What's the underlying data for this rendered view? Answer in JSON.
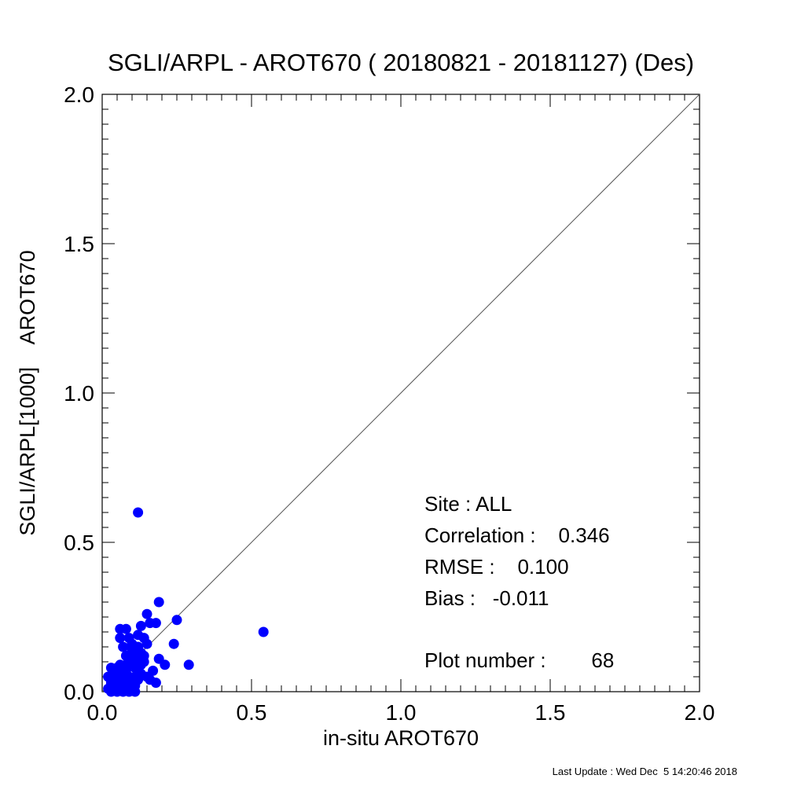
{
  "chart_data": {
    "type": "scatter",
    "title": "SGLI/ARPL - AROT670 ( 20180821 - 20181127) (Des)",
    "xlabel": "in-situ AROT670",
    "ylabel": "SGLI/ARPL[1000]    AROT670",
    "xlim": [
      0.0,
      2.0
    ],
    "ylim": [
      0.0,
      2.0
    ],
    "x_ticks": [
      "0.0",
      "0.5",
      "1.0",
      "1.5",
      "2.0"
    ],
    "y_ticks": [
      "0.0",
      "0.5",
      "1.0",
      "1.5",
      "2.0"
    ],
    "grid": false,
    "reference_line": {
      "from": [
        0.0,
        0.0
      ],
      "to": [
        2.0,
        2.0
      ]
    },
    "marker_color": "#0000ff",
    "stats": {
      "site": "Site : ALL",
      "correlation": "Correlation :    0.346",
      "rmse": "RMSE :    0.100",
      "bias": "Bias :   -0.011",
      "plot_number": "Plot number :        68"
    },
    "footer": "Last Update : Wed Dec  5 14:20:46 2018",
    "points": [
      {
        "x": 0.12,
        "y": 0.6
      },
      {
        "x": 0.54,
        "y": 0.2
      },
      {
        "x": 0.19,
        "y": 0.3
      },
      {
        "x": 0.25,
        "y": 0.24
      },
      {
        "x": 0.15,
        "y": 0.26
      },
      {
        "x": 0.24,
        "y": 0.16
      },
      {
        "x": 0.29,
        "y": 0.09
      },
      {
        "x": 0.21,
        "y": 0.09
      },
      {
        "x": 0.18,
        "y": 0.23
      },
      {
        "x": 0.16,
        "y": 0.23
      },
      {
        "x": 0.13,
        "y": 0.22
      },
      {
        "x": 0.08,
        "y": 0.21
      },
      {
        "x": 0.06,
        "y": 0.21
      },
      {
        "x": 0.06,
        "y": 0.18
      },
      {
        "x": 0.09,
        "y": 0.18
      },
      {
        "x": 0.12,
        "y": 0.19
      },
      {
        "x": 0.1,
        "y": 0.16
      },
      {
        "x": 0.15,
        "y": 0.16
      },
      {
        "x": 0.12,
        "y": 0.15
      },
      {
        "x": 0.13,
        "y": 0.13
      },
      {
        "x": 0.11,
        "y": 0.12
      },
      {
        "x": 0.08,
        "y": 0.12
      },
      {
        "x": 0.1,
        "y": 0.1
      },
      {
        "x": 0.14,
        "y": 0.1
      },
      {
        "x": 0.19,
        "y": 0.11
      },
      {
        "x": 0.06,
        "y": 0.09
      },
      {
        "x": 0.05,
        "y": 0.08
      },
      {
        "x": 0.03,
        "y": 0.08
      },
      {
        "x": 0.08,
        "y": 0.07
      },
      {
        "x": 0.12,
        "y": 0.07
      },
      {
        "x": 0.17,
        "y": 0.07
      },
      {
        "x": 0.13,
        "y": 0.06
      },
      {
        "x": 0.09,
        "y": 0.05
      },
      {
        "x": 0.11,
        "y": 0.05
      },
      {
        "x": 0.15,
        "y": 0.05
      },
      {
        "x": 0.02,
        "y": 0.05
      },
      {
        "x": 0.04,
        "y": 0.04
      },
      {
        "x": 0.07,
        "y": 0.04
      },
      {
        "x": 0.1,
        "y": 0.04
      },
      {
        "x": 0.12,
        "y": 0.04
      },
      {
        "x": 0.06,
        "y": 0.03
      },
      {
        "x": 0.09,
        "y": 0.03
      },
      {
        "x": 0.03,
        "y": 0.03
      },
      {
        "x": 0.05,
        "y": 0.02
      },
      {
        "x": 0.08,
        "y": 0.02
      },
      {
        "x": 0.11,
        "y": 0.02
      },
      {
        "x": 0.18,
        "y": 0.03
      },
      {
        "x": 0.02,
        "y": 0.01
      },
      {
        "x": 0.04,
        "y": 0.01
      },
      {
        "x": 0.06,
        "y": 0.01
      },
      {
        "x": 0.09,
        "y": 0.01
      },
      {
        "x": 0.1,
        "y": 0.01
      },
      {
        "x": 0.03,
        "y": 0.0
      },
      {
        "x": 0.05,
        "y": 0.0
      },
      {
        "x": 0.07,
        "y": 0.0
      },
      {
        "x": 0.09,
        "y": 0.0
      },
      {
        "x": 0.11,
        "y": 0.0
      },
      {
        "x": 0.14,
        "y": 0.12
      },
      {
        "x": 0.07,
        "y": 0.15
      },
      {
        "x": 0.1,
        "y": 0.14
      },
      {
        "x": 0.16,
        "y": 0.04
      },
      {
        "x": 0.13,
        "y": 0.09
      },
      {
        "x": 0.08,
        "y": 0.09
      },
      {
        "x": 0.11,
        "y": 0.08
      },
      {
        "x": 0.04,
        "y": 0.06
      },
      {
        "x": 0.06,
        "y": 0.06
      },
      {
        "x": 0.12,
        "y": 0.11
      },
      {
        "x": 0.14,
        "y": 0.18
      }
    ]
  }
}
